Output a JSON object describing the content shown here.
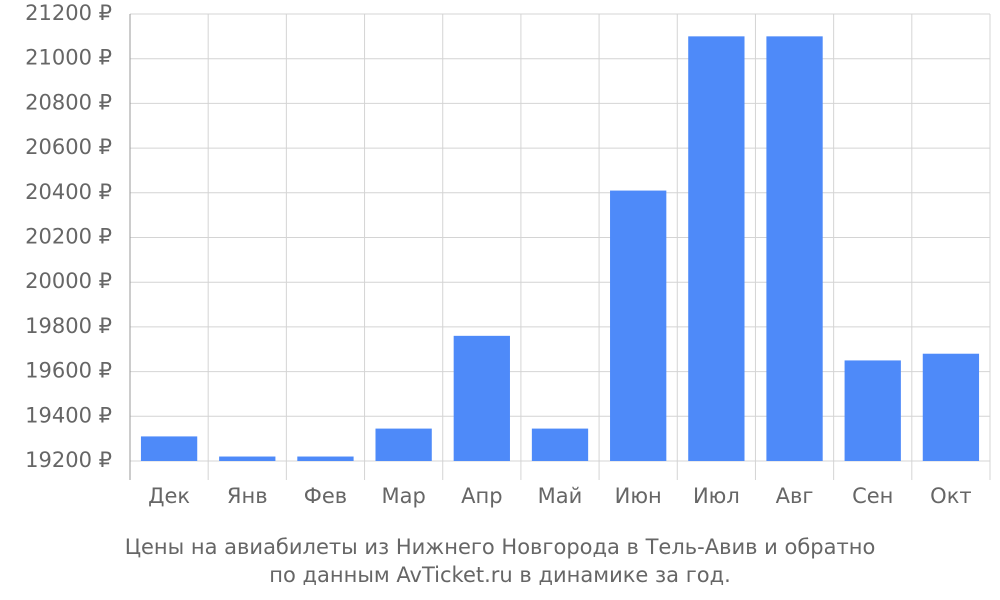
{
  "chart_data": {
    "type": "bar",
    "title": "Цены на авиабилеты из Нижнего Новгорода в Тель-Авив и обратно",
    "subtitle": "по данным AvTicket.ru в динамике за год.",
    "categories": [
      "Дек",
      "Янв",
      "Фев",
      "Мар",
      "Апр",
      "Май",
      "Июн",
      "Июл",
      "Авг",
      "Сен",
      "Окт"
    ],
    "values": [
      19310,
      19220,
      19220,
      19345,
      19760,
      19345,
      20410,
      21100,
      21100,
      19650,
      19680
    ],
    "color": "#4e8af9",
    "ylim": [
      19200,
      21200
    ],
    "yticks": [
      {
        "value": 19200,
        "label": "19200 ₽"
      },
      {
        "value": 19400,
        "label": "19400 ₽"
      },
      {
        "value": 19600,
        "label": "19600 ₽"
      },
      {
        "value": 19800,
        "label": "19800 ₽"
      },
      {
        "value": 20000,
        "label": "20000 ₽"
      },
      {
        "value": 20200,
        "label": "20200 ₽"
      },
      {
        "value": 20400,
        "label": "20400 ₽"
      },
      {
        "value": 20600,
        "label": "20600 ₽"
      },
      {
        "value": 20800,
        "label": "20800 ₽"
      },
      {
        "value": 21000,
        "label": "21000 ₽"
      },
      {
        "value": 21200,
        "label": "21200 ₽"
      }
    ],
    "grid": true
  }
}
